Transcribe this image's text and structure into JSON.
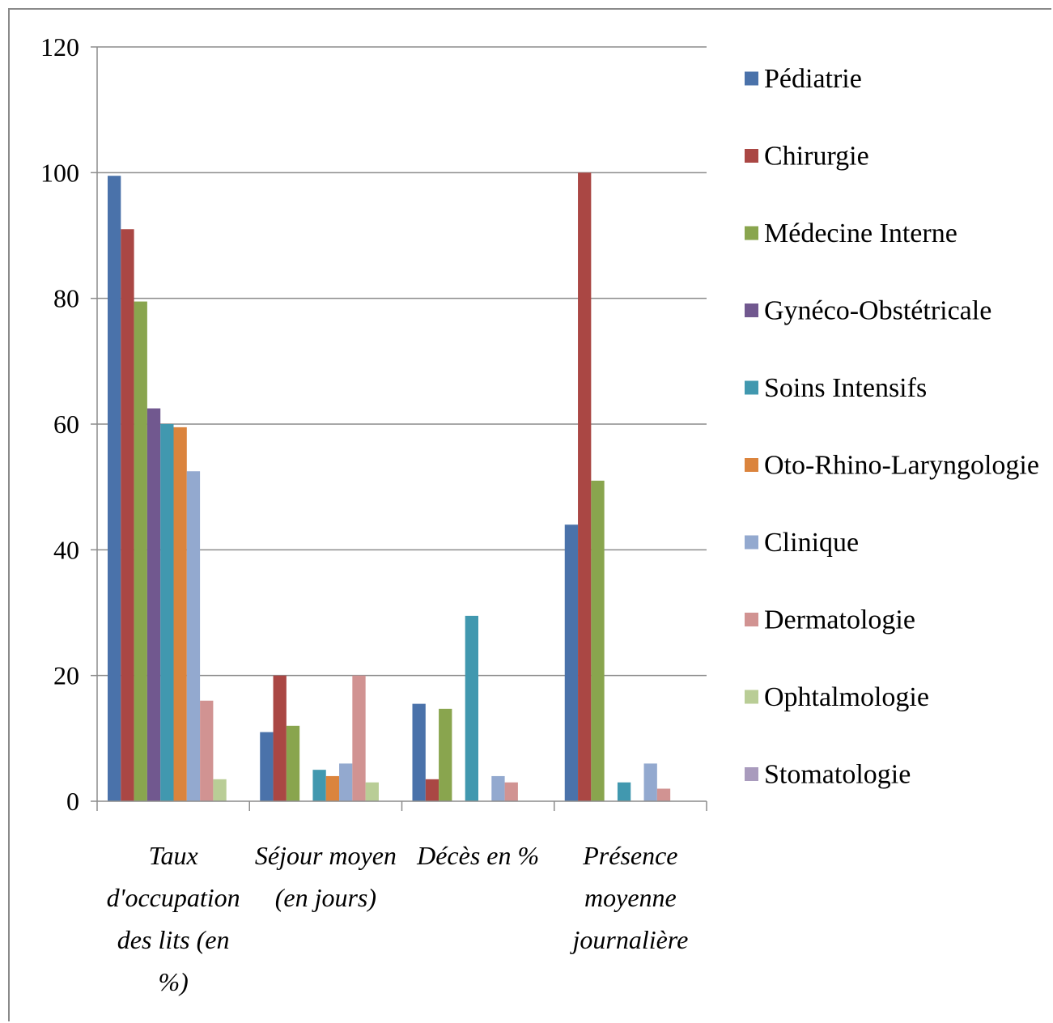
{
  "chart_data": {
    "type": "bar",
    "ylim": [
      0,
      120
    ],
    "yticks": [
      "0",
      "20",
      "40",
      "60",
      "80",
      "100",
      "120"
    ],
    "grid": true,
    "legend_position": "right",
    "categories": [
      [
        "Taux",
        "d'occupation",
        "des lits (en",
        "%)"
      ],
      [
        "Séjour moyen",
        "(en jours)"
      ],
      [
        "Décès en %"
      ],
      [
        "Présence",
        "moyenne",
        "journalière"
      ]
    ],
    "series": [
      {
        "name": "Pédiatrie",
        "color": "#4a72aa",
        "values": [
          99.5,
          11,
          15.5,
          44
        ]
      },
      {
        "name": "Chirurgie",
        "color": "#aa4744",
        "values": [
          91,
          20,
          3.5,
          100
        ]
      },
      {
        "name": "Médecine Interne",
        "color": "#89a54e",
        "values": [
          79.5,
          12,
          14.7,
          51
        ]
      },
      {
        "name": "Gynéco-Obstétricale",
        "color": "#71588f",
        "values": [
          62.5,
          0,
          0,
          0
        ]
      },
      {
        "name": "Soins Intensifs",
        "color": "#4198af",
        "values": [
          60,
          5,
          29.5,
          3
        ]
      },
      {
        "name": "Oto-Rhino-Laryngologie",
        "color": "#db843d",
        "values": [
          59.5,
          4,
          0,
          0
        ]
      },
      {
        "name": "Clinique",
        "color": "#93a9cf",
        "values": [
          52.5,
          6,
          4,
          6
        ]
      },
      {
        "name": "Dermatologie",
        "color": "#d19392",
        "values": [
          16,
          20,
          3,
          2
        ]
      },
      {
        "name": "Ophtalmologie",
        "color": "#b9cd96",
        "values": [
          3.5,
          3,
          0,
          0
        ]
      },
      {
        "name": "Stomatologie",
        "color": "#a99bbd",
        "values": [
          0,
          0,
          0,
          0
        ]
      }
    ]
  }
}
